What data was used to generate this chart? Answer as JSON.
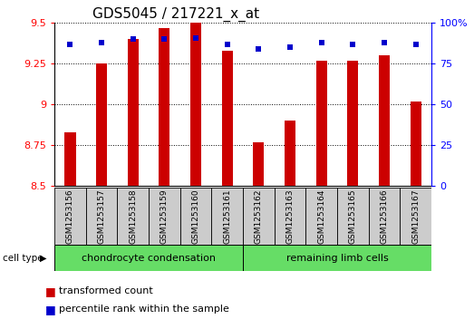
{
  "title": "GDS5045 / 217221_x_at",
  "samples": [
    "GSM1253156",
    "GSM1253157",
    "GSM1253158",
    "GSM1253159",
    "GSM1253160",
    "GSM1253161",
    "GSM1253162",
    "GSM1253163",
    "GSM1253164",
    "GSM1253165",
    "GSM1253166",
    "GSM1253167"
  ],
  "bar_values": [
    8.83,
    9.25,
    9.4,
    9.47,
    9.5,
    9.33,
    8.77,
    8.9,
    9.27,
    9.27,
    9.3,
    9.02
  ],
  "percentile_values": [
    87,
    88,
    90,
    90,
    91,
    87,
    84,
    85,
    88,
    87,
    88,
    87
  ],
  "bar_color": "#cc0000",
  "dot_color": "#0000cc",
  "ymin": 8.5,
  "ymax": 9.5,
  "yticks": [
    8.5,
    8.75,
    9.0,
    9.25,
    9.5
  ],
  "ytick_labels": [
    "8.5",
    "8.75",
    "9",
    "9.25",
    "9.5"
  ],
  "y2min": 0,
  "y2max": 100,
  "y2ticks": [
    0,
    25,
    50,
    75,
    100
  ],
  "y2tick_labels": [
    "0",
    "25",
    "50",
    "75",
    "100%"
  ],
  "group1_label": "chondrocyte condensation",
  "group2_label": "remaining limb cells",
  "group1_indices": [
    0,
    1,
    2,
    3,
    4,
    5
  ],
  "group2_indices": [
    6,
    7,
    8,
    9,
    10,
    11
  ],
  "cell_type_label": "cell type",
  "legend_bar_label": "transformed count",
  "legend_dot_label": "percentile rank within the sample",
  "group1_color": "#66dd66",
  "group2_color": "#66dd66",
  "bar_base": 8.5,
  "title_fontsize": 11,
  "tick_fontsize": 8,
  "sample_fontsize": 6.5,
  "group_fontsize": 8,
  "legend_fontsize": 8,
  "bg_color": "#cccccc",
  "bar_width": 0.35
}
